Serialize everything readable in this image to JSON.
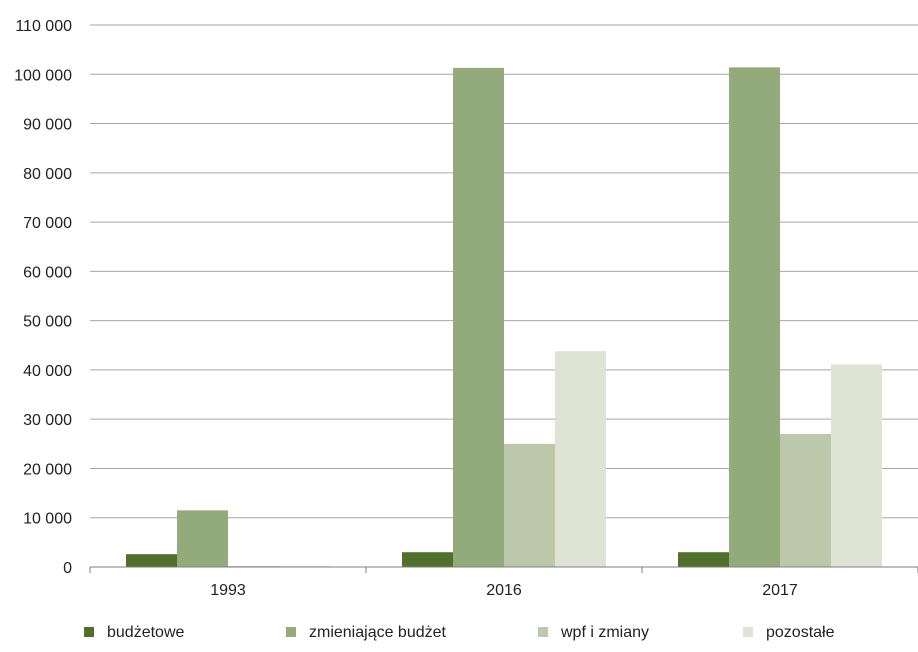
{
  "chart_data": {
    "type": "bar",
    "title": "",
    "xlabel": "",
    "ylabel": "",
    "categories": [
      "1993",
      "2016",
      "2017"
    ],
    "ylim": [
      0,
      110000
    ],
    "yticks": [
      0,
      10000,
      20000,
      30000,
      40000,
      50000,
      60000,
      70000,
      80000,
      90000,
      100000,
      110000
    ],
    "ytick_labels": [
      "0",
      "10 000",
      "20 000",
      "30 000",
      "40 000",
      "50 000",
      "60 000",
      "70 000",
      "80 000",
      "90 000",
      "100 000",
      "110 000"
    ],
    "grid": "horizontal",
    "legend_position": "bottom",
    "series": [
      {
        "name": "budżetowe",
        "color": "#4f6f2a",
        "values": [
          2600,
          3000,
          3000
        ]
      },
      {
        "name": "zmieniające budżet",
        "color": "#93aa7a",
        "values": [
          11500,
          101300,
          101400
        ]
      },
      {
        "name": "wpf i zmiany",
        "color": "#bcc8aa",
        "values": [
          200,
          25000,
          27000
        ]
      },
      {
        "name": "pozostałe",
        "color": "#dfe3d4",
        "values": [
          200,
          43800,
          41100
        ]
      }
    ]
  }
}
